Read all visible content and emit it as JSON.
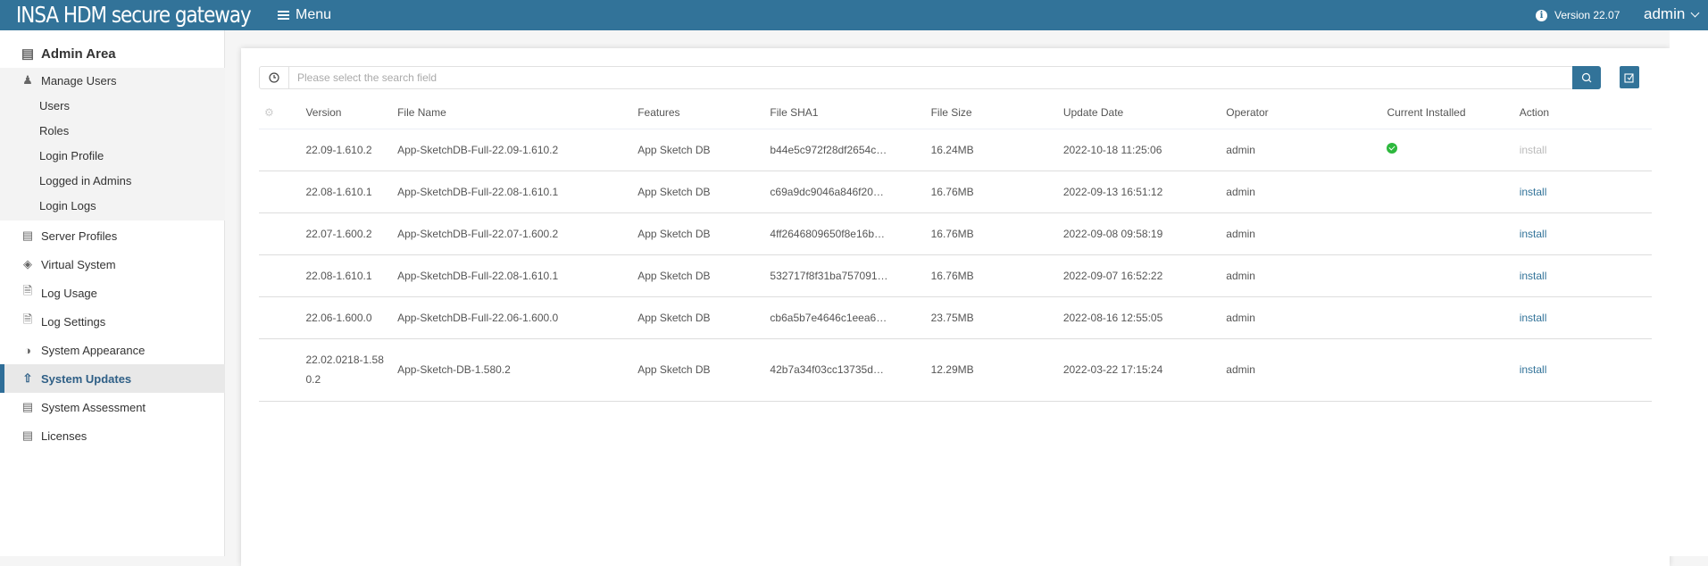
{
  "header": {
    "brand": "INSA HDM secure gateway",
    "menu_label": "Menu",
    "version": "Version 22.07",
    "user": "admin"
  },
  "sidebar": {
    "title": "Admin Area",
    "items": [
      {
        "label": "Manage Users",
        "icon": "user-gear-icon"
      },
      {
        "label": "Users"
      },
      {
        "label": "Roles"
      },
      {
        "label": "Login Profile"
      },
      {
        "label": "Logged in Admins"
      },
      {
        "label": "Login Logs"
      },
      {
        "label": "Server Profiles",
        "icon": "server-gear-icon"
      },
      {
        "label": "Virtual System",
        "icon": "layers-icon"
      },
      {
        "label": "Log Usage",
        "icon": "log-chart-icon"
      },
      {
        "label": "Log Settings",
        "icon": "log-gear-icon"
      },
      {
        "label": "System Appearance",
        "icon": "palette-icon"
      },
      {
        "label": "System Updates",
        "icon": "update-icon",
        "active": true
      },
      {
        "label": "System Assessment",
        "icon": "clipboard-search-icon"
      },
      {
        "label": "Licenses",
        "icon": "license-icon"
      }
    ]
  },
  "search": {
    "placeholder": "Please select the search field"
  },
  "table": {
    "columns": [
      "Version",
      "File Name",
      "Features",
      "File SHA1",
      "File Size",
      "Update Date",
      "Operator",
      "Current Installed",
      "Action"
    ],
    "rows": [
      {
        "version": "22.09-1.610.2",
        "file": "App-SketchDB-Full-22.09-1.610.2",
        "features": "App Sketch DB",
        "sha": "b44e5c972f28df2654c…",
        "size": "16.24MB",
        "date": "2022-10-18 11:25:06",
        "operator": "admin",
        "installed": true,
        "action": "install"
      },
      {
        "version": "22.08-1.610.1",
        "file": "App-SketchDB-Full-22.08-1.610.1",
        "features": "App Sketch DB",
        "sha": "c69a9dc9046a846f20…",
        "size": "16.76MB",
        "date": "2022-09-13 16:51:12",
        "operator": "admin",
        "installed": false,
        "action": "install"
      },
      {
        "version": "22.07-1.600.2",
        "file": "App-SketchDB-Full-22.07-1.600.2",
        "features": "App Sketch DB",
        "sha": "4ff2646809650f8e16b…",
        "size": "16.76MB",
        "date": "2022-09-08 09:58:19",
        "operator": "admin",
        "installed": false,
        "action": "install"
      },
      {
        "version": "22.08-1.610.1",
        "file": "App-SketchDB-Full-22.08-1.610.1",
        "features": "App Sketch DB",
        "sha": "532717f8f31ba757091…",
        "size": "16.76MB",
        "date": "2022-09-07 16:52:22",
        "operator": "admin",
        "installed": false,
        "action": "install"
      },
      {
        "version": "22.06-1.600.0",
        "file": "App-SketchDB-Full-22.06-1.600.0",
        "features": "App Sketch DB",
        "sha": "cb6a5b7e4646c1eea6…",
        "size": "23.75MB",
        "date": "2022-08-16 12:55:05",
        "operator": "admin",
        "installed": false,
        "action": "install"
      },
      {
        "version": "22.02.0218-1.580.2",
        "file": "App-Sketch-DB-1.580.2",
        "features": "App Sketch DB",
        "sha": "42b7a34f03cc13735d…",
        "size": "12.29MB",
        "date": "2022-03-22 17:15:24",
        "operator": "admin",
        "installed": false,
        "action": "install"
      }
    ]
  },
  "colors": {
    "brand": "#327399",
    "installed": "#2db83d"
  }
}
